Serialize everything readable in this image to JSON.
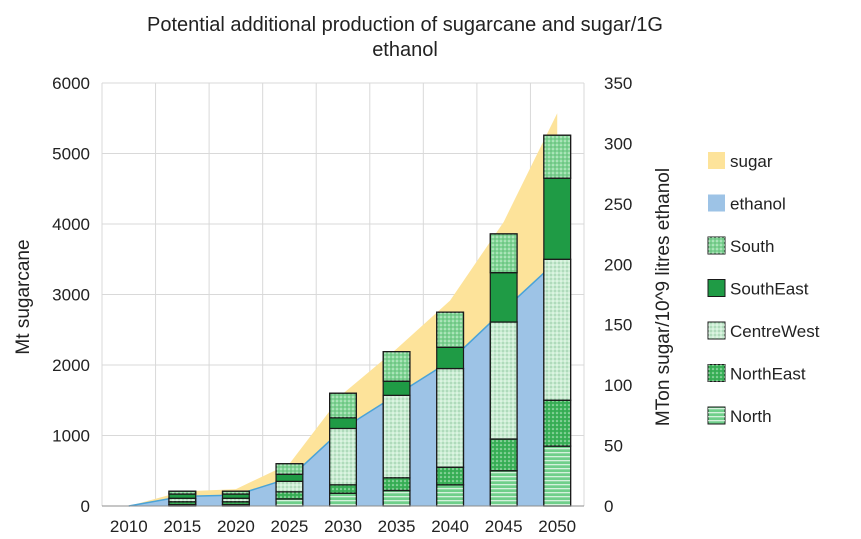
{
  "chart_data": {
    "type": "bar",
    "title_lines": [
      "Potential additional production of sugarcane and sugar/1G",
      "ethanol"
    ],
    "categories": [
      "2010",
      "2015",
      "2020",
      "2025",
      "2030",
      "2035",
      "2040",
      "2045",
      "2050"
    ],
    "ylabel": "Mt sugarcane",
    "y2label": "MTon sugar/10^9 litres ethanol",
    "ylim": [
      0,
      6000
    ],
    "y2lim": [
      0,
      350
    ],
    "yticks": [
      "0",
      "1000",
      "2000",
      "3000",
      "4000",
      "5000",
      "6000"
    ],
    "y2ticks": [
      "0",
      "50",
      "100",
      "150",
      "200",
      "250",
      "300",
      "350"
    ],
    "grid": true,
    "legend_position": "right",
    "stack_series": [
      {
        "name": "North",
        "color": "#6fcf8a",
        "pattern": "hlines",
        "values": [
          0,
          20,
          20,
          100,
          180,
          220,
          300,
          500,
          850
        ]
      },
      {
        "name": "NorthEast",
        "color": "#3cb35a",
        "pattern": "dots",
        "values": [
          0,
          40,
          40,
          100,
          120,
          180,
          250,
          450,
          650
        ]
      },
      {
        "name": "CentreWest",
        "color": "#c9ecd2",
        "pattern": "dots",
        "values": [
          0,
          50,
          50,
          150,
          800,
          1170,
          1400,
          1660,
          2000
        ]
      },
      {
        "name": "SouthEast",
        "color": "#1f9b45",
        "pattern": "none",
        "values": [
          0,
          60,
          60,
          100,
          150,
          200,
          300,
          700,
          1150
        ]
      },
      {
        "name": "South",
        "color": "#7fd494",
        "pattern": "dots",
        "values": [
          0,
          40,
          40,
          150,
          350,
          420,
          500,
          550,
          610
        ]
      }
    ],
    "area_series": [
      {
        "name": "sugar",
        "color": "#fde39a",
        "axis": "y2",
        "values": [
          0,
          12,
          14,
          35,
          93,
          130,
          170,
          235,
          325
        ]
      },
      {
        "name": "ethanol",
        "color": "#9dc3e6",
        "axis": "y2",
        "values": [
          0,
          8,
          9,
          23,
          64,
          92,
          120,
          162,
          203
        ]
      }
    ],
    "legend": [
      {
        "name": "sugar",
        "kind": "area",
        "color": "#fde39a"
      },
      {
        "name": "ethanol",
        "kind": "area",
        "color": "#9dc3e6"
      },
      {
        "name": "South",
        "kind": "bar",
        "color": "#7fd494",
        "pattern": "dots"
      },
      {
        "name": "SouthEast",
        "kind": "bar",
        "color": "#1f9b45",
        "pattern": "none"
      },
      {
        "name": "CentreWest",
        "kind": "bar",
        "color": "#c9ecd2",
        "pattern": "dots"
      },
      {
        "name": "NorthEast",
        "kind": "bar",
        "color": "#3cb35a",
        "pattern": "dots"
      },
      {
        "name": "North",
        "kind": "bar",
        "color": "#6fcf8a",
        "pattern": "hlines"
      }
    ]
  }
}
